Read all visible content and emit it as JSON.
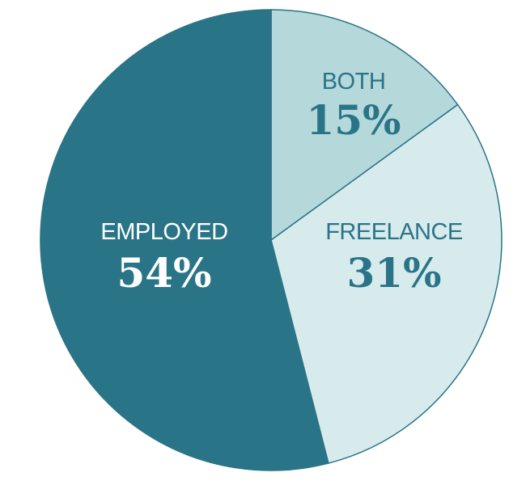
{
  "chart_data": {
    "type": "pie",
    "title": "",
    "slices": [
      {
        "label": "BOTH",
        "value": 15,
        "display": "15%",
        "color": "#b5d8da",
        "label_color": "#2a7488"
      },
      {
        "label": "FREELANCE",
        "value": 31,
        "display": "31%",
        "color": "#d8ebec",
        "label_color": "#2a7488"
      },
      {
        "label": "EMPLOYED",
        "value": 54,
        "display": "54%",
        "color": "#2a7488",
        "label_color": "#ffffff"
      }
    ],
    "start": "12 o'clock",
    "direction": "clockwise",
    "border_color": "#2a7488",
    "legend": "none"
  }
}
